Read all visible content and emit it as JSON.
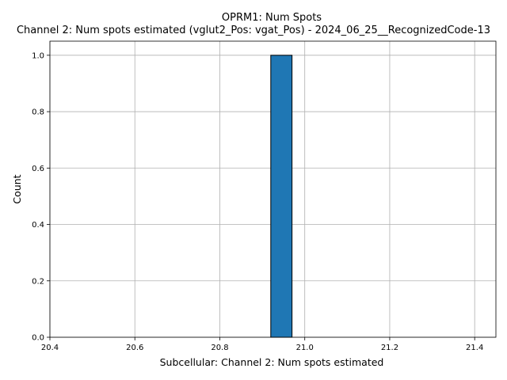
{
  "chart_data": {
    "type": "bar",
    "title": "OPRM1: Num Spots",
    "subtitle": "Channel 2: Num spots estimated (vglut2_Pos: vgat_Pos) - 2024_06_25__RecognizedCode-13",
    "xlabel": "Subcellular: Channel 2: Num spots estimated",
    "ylabel": "Count",
    "xlim": [
      20.4,
      21.45
    ],
    "ylim": [
      0,
      1.05
    ],
    "xticks": [
      "20.4",
      "20.6",
      "20.8",
      "21.0",
      "21.2",
      "21.4"
    ],
    "yticks": [
      "0.0",
      "0.2",
      "0.4",
      "0.6",
      "0.8",
      "1.0"
    ],
    "bins": [
      {
        "x0": 20.42,
        "x1": 20.47,
        "count": 0
      },
      {
        "x0": 20.47,
        "x1": 20.52,
        "count": 0
      },
      {
        "x0": 20.52,
        "x1": 20.57,
        "count": 0
      },
      {
        "x0": 20.57,
        "x1": 20.62,
        "count": 0
      },
      {
        "x0": 20.62,
        "x1": 20.67,
        "count": 0
      },
      {
        "x0": 20.67,
        "x1": 20.72,
        "count": 0
      },
      {
        "x0": 20.72,
        "x1": 20.77,
        "count": 0
      },
      {
        "x0": 20.77,
        "x1": 20.82,
        "count": 0
      },
      {
        "x0": 20.82,
        "x1": 20.87,
        "count": 0
      },
      {
        "x0": 20.87,
        "x1": 20.92,
        "count": 0
      },
      {
        "x0": 20.92,
        "x1": 20.97,
        "count": 1
      },
      {
        "x0": 20.97,
        "x1": 21.02,
        "count": 0
      },
      {
        "x0": 21.02,
        "x1": 21.07,
        "count": 0
      },
      {
        "x0": 21.07,
        "x1": 21.12,
        "count": 0
      },
      {
        "x0": 21.12,
        "x1": 21.17,
        "count": 0
      },
      {
        "x0": 21.17,
        "x1": 21.22,
        "count": 0
      },
      {
        "x0": 21.22,
        "x1": 21.27,
        "count": 0
      },
      {
        "x0": 21.27,
        "x1": 21.32,
        "count": 0
      },
      {
        "x0": 21.32,
        "x1": 21.37,
        "count": 0
      },
      {
        "x0": 21.37,
        "x1": 21.42,
        "count": 0
      }
    ],
    "grid": true,
    "bar_color": "#1f77b4"
  }
}
